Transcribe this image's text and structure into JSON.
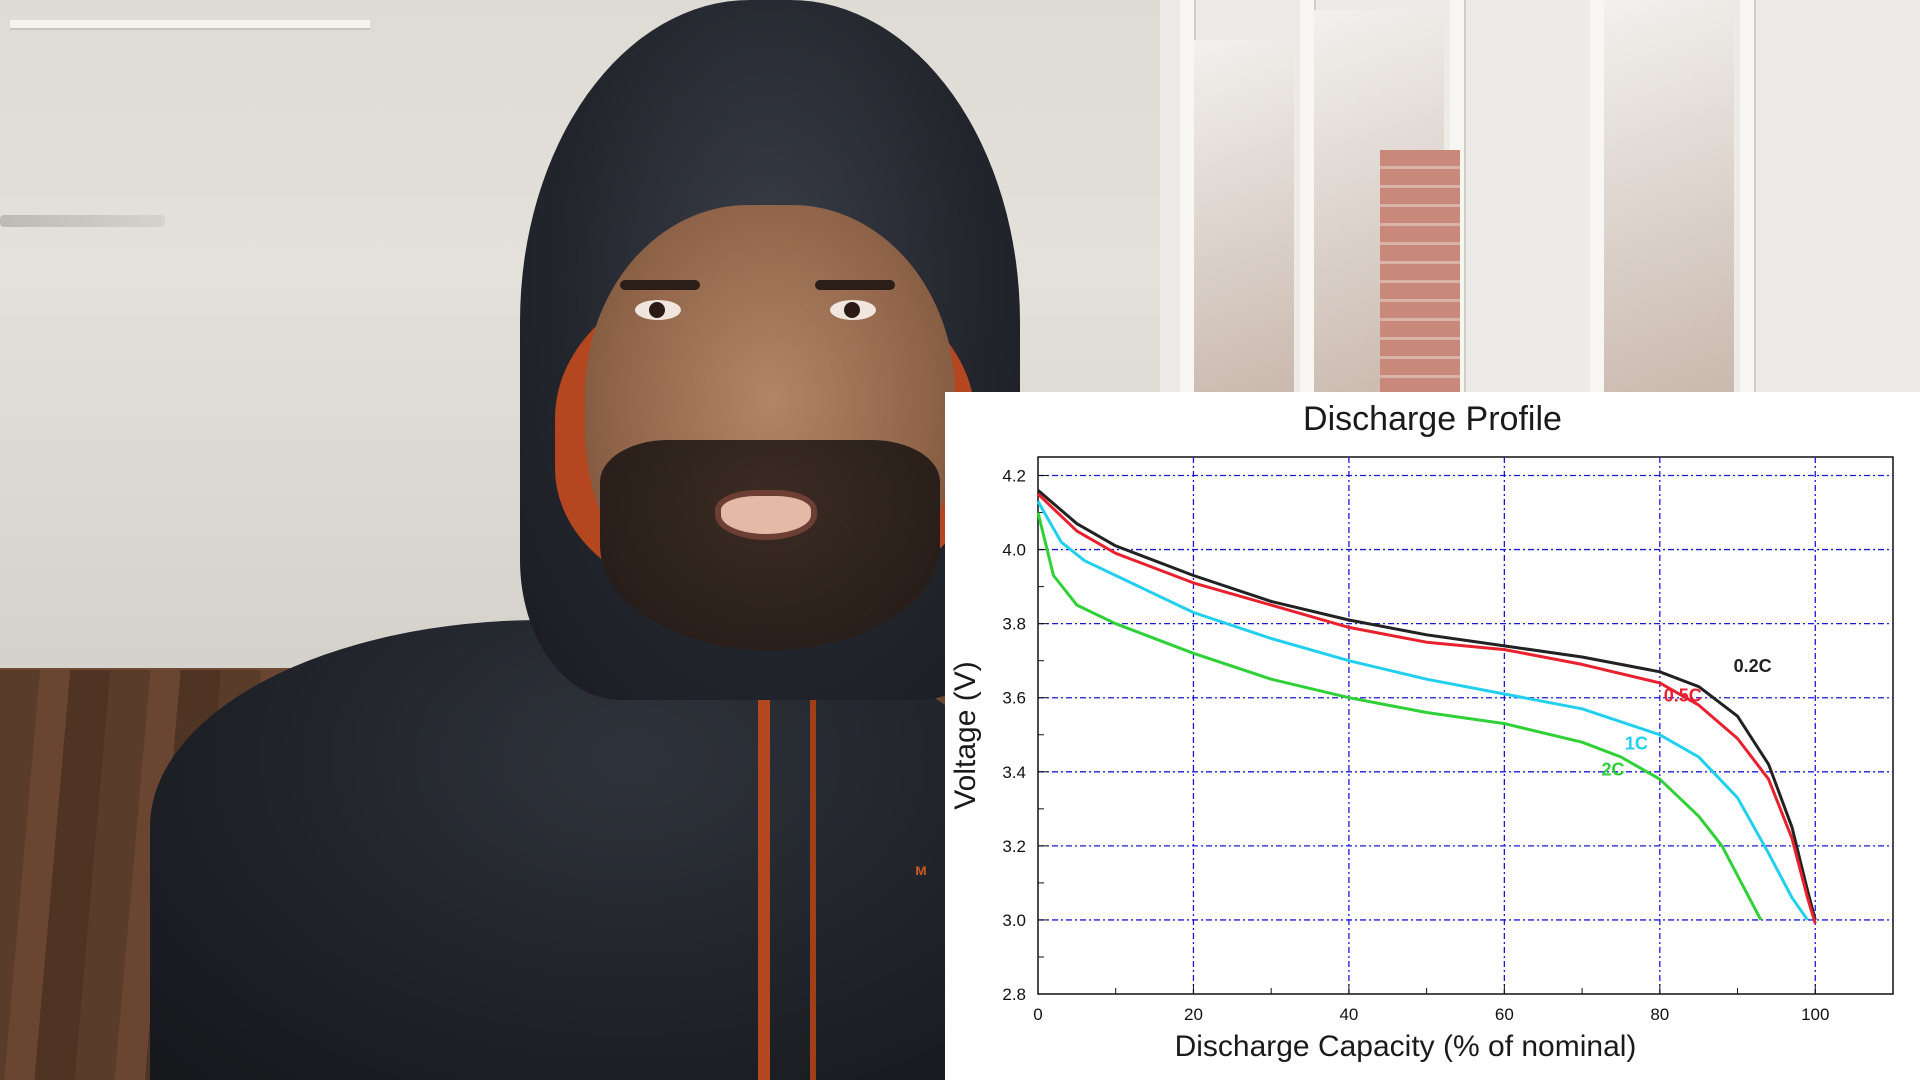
{
  "scene": {
    "description_icons": [
      "person-icon",
      "window-icon"
    ],
    "chart_overlay": true
  },
  "chart_data": {
    "type": "line",
    "title": "Discharge Profile",
    "xlabel": "Discharge Capacity (% of nominal)",
    "ylabel": "Voltage (V)",
    "xlim": [
      0,
      110
    ],
    "ylim": [
      2.8,
      4.25
    ],
    "x_ticks": [
      0,
      20,
      40,
      60,
      80,
      100
    ],
    "y_ticks": [
      2.8,
      3.0,
      3.2,
      3.4,
      3.6,
      3.8,
      4.0,
      4.2
    ],
    "x_tick_labels": [
      "0",
      "20",
      "40",
      "60",
      "80",
      "100"
    ],
    "y_tick_labels": [
      "2.8",
      "3.0",
      "3.2",
      "3.4",
      "3.6",
      "3.8",
      "4.0",
      "4.2"
    ],
    "grid": true,
    "series": [
      {
        "name": "0.2C",
        "color": "#222222",
        "x": [
          0,
          5,
          10,
          20,
          30,
          40,
          50,
          60,
          70,
          80,
          85,
          90,
          94,
          97,
          99,
          100
        ],
        "y": [
          4.16,
          4.07,
          4.01,
          3.93,
          3.86,
          3.81,
          3.77,
          3.74,
          3.71,
          3.67,
          3.63,
          3.55,
          3.42,
          3.25,
          3.08,
          3.0
        ]
      },
      {
        "name": "0.5C",
        "color": "#e8212e",
        "x": [
          0,
          5,
          10,
          20,
          30,
          40,
          50,
          60,
          70,
          80,
          85,
          90,
          94,
          97,
          99,
          100
        ],
        "y": [
          4.15,
          4.05,
          3.99,
          3.91,
          3.85,
          3.79,
          3.75,
          3.73,
          3.69,
          3.64,
          3.58,
          3.49,
          3.38,
          3.22,
          3.06,
          2.99
        ]
      },
      {
        "name": "1C",
        "color": "#22d0ee",
        "x": [
          0,
          3,
          6,
          10,
          20,
          30,
          40,
          50,
          60,
          70,
          80,
          85,
          90,
          94,
          97,
          99
        ],
        "y": [
          4.13,
          4.02,
          3.97,
          3.93,
          3.83,
          3.76,
          3.7,
          3.65,
          3.61,
          3.57,
          3.5,
          3.44,
          3.33,
          3.18,
          3.06,
          3.0
        ]
      },
      {
        "name": "2C",
        "color": "#30d038",
        "x": [
          0,
          2,
          5,
          10,
          20,
          30,
          40,
          50,
          60,
          70,
          75,
          80,
          85,
          88,
          91,
          93
        ],
        "y": [
          4.1,
          3.93,
          3.85,
          3.8,
          3.72,
          3.65,
          3.6,
          3.56,
          3.53,
          3.48,
          3.44,
          3.38,
          3.28,
          3.2,
          3.08,
          3.0
        ]
      }
    ],
    "annotations": [
      {
        "text": "0.2C",
        "x": 89.5,
        "y": 3.67,
        "color": "#222222"
      },
      {
        "text": "0.5C",
        "x": 80.5,
        "y": 3.59,
        "color": "#e8212e"
      },
      {
        "text": "1C",
        "x": 75.5,
        "y": 3.46,
        "color": "#22d0ee"
      },
      {
        "text": "2C",
        "x": 72.5,
        "y": 3.39,
        "color": "#30d038"
      }
    ]
  }
}
